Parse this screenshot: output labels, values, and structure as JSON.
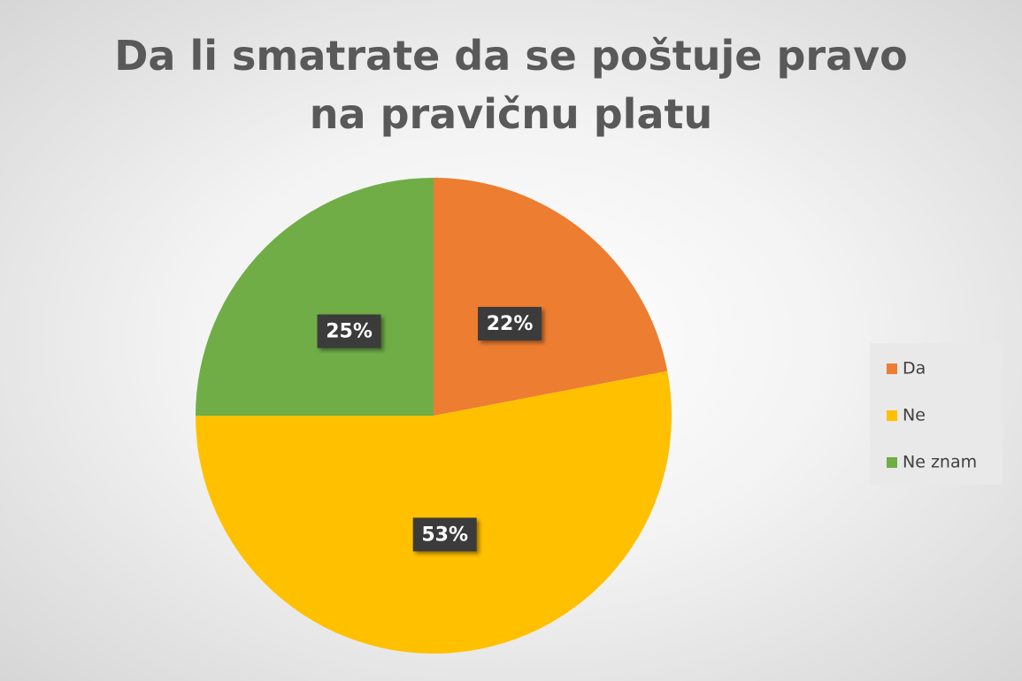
{
  "chart_data": {
    "type": "pie",
    "title": "Da li smatrate da se poštuje pravo na pravičnu platu",
    "categories": [
      "Da",
      "Ne",
      "Ne znam"
    ],
    "values": [
      22,
      53,
      25
    ],
    "value_labels": [
      "22%",
      "53%",
      "25%"
    ],
    "colors": [
      "#ed7d31",
      "#ffc000",
      "#70ad47"
    ],
    "legend": "right"
  }
}
